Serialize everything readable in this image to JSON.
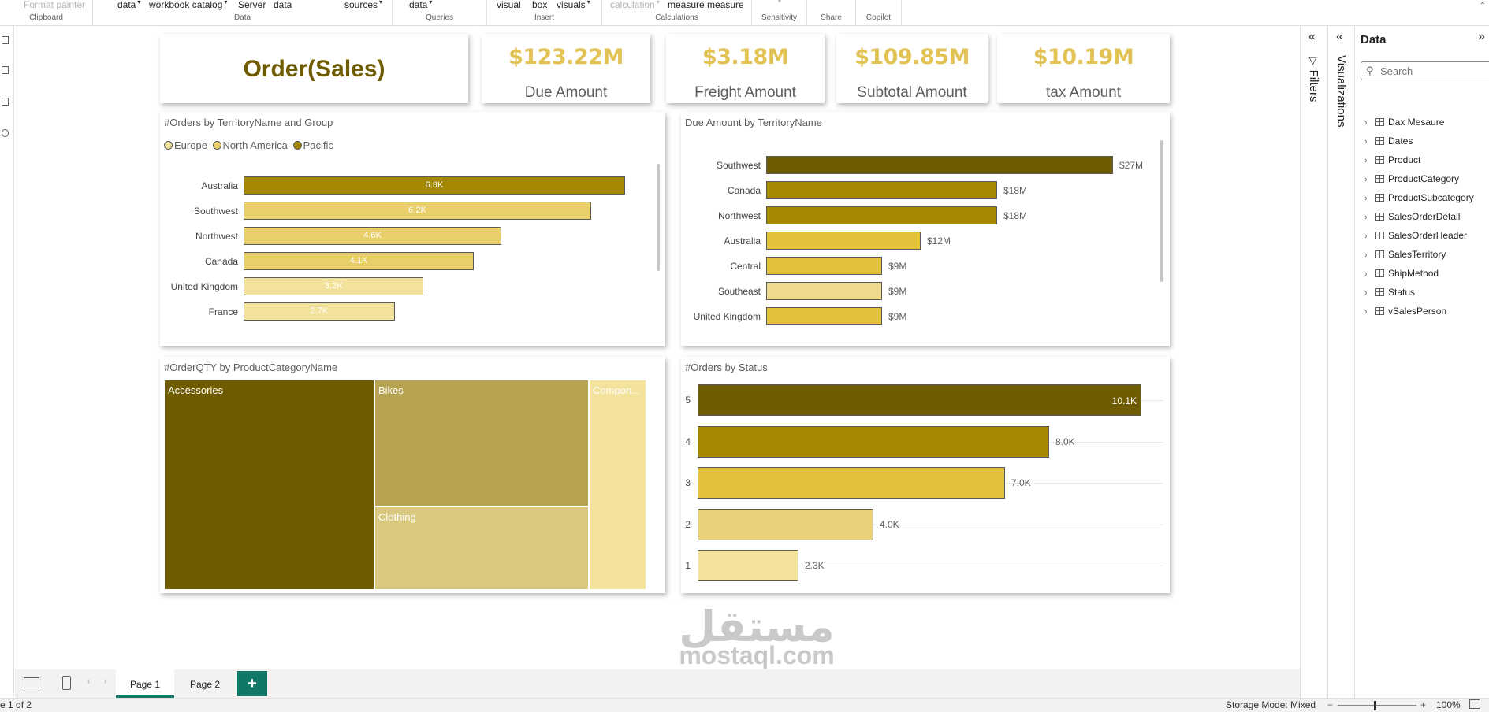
{
  "ribbon": {
    "groups": [
      {
        "name": "clipboard",
        "label": "Clipboard",
        "items": [
          "Format painter"
        ]
      },
      {
        "name": "data",
        "label": "Data",
        "items": [
          "data",
          "workbook catalog",
          "Server",
          "data",
          "sources"
        ]
      },
      {
        "name": "queries",
        "label": "Queries",
        "items": [
          "data"
        ]
      },
      {
        "name": "insert",
        "label": "Insert",
        "items": [
          "visual",
          "box",
          "visuals"
        ]
      },
      {
        "name": "calculations",
        "label": "Calculations",
        "items": [
          "calculation",
          "measure measure"
        ]
      },
      {
        "name": "sensitivity",
        "label": "Sensitivity",
        "items": []
      },
      {
        "name": "share",
        "label": "Share",
        "items": []
      },
      {
        "name": "copilot",
        "label": "Copilot",
        "items": []
      }
    ]
  },
  "report": {
    "title_card": "Order(Sales)",
    "kpis": [
      {
        "value": "$123.22M",
        "label": "Due Amount"
      },
      {
        "value": "$3.18M",
        "label": "Freight Amount"
      },
      {
        "value": "$109.85M",
        "label": "Subtotal Amount"
      },
      {
        "value": "$10.19M",
        "label": "tax Amount"
      }
    ]
  },
  "chart_data": [
    {
      "type": "bar",
      "orientation": "horizontal",
      "title": "#Orders by TerritoryName and Group",
      "legend": {
        "placement": "top-left",
        "entries": [
          {
            "name": "Europe",
            "color": "#f2e29b"
          },
          {
            "name": "North America",
            "color": "#e8cf69"
          },
          {
            "name": "Pacific",
            "color": "#a38800"
          }
        ]
      },
      "categories": [
        "Australia",
        "Southwest",
        "Northwest",
        "Canada",
        "United Kingdom",
        "France"
      ],
      "values": [
        6800,
        6200,
        4600,
        4100,
        3200,
        2700
      ],
      "data_labels": [
        "6.8K",
        "6.2K",
        "4.6K",
        "4.1K",
        "3.2K",
        "2.7K"
      ],
      "colors": [
        "#a38800",
        "#e8cf69",
        "#e8cf69",
        "#e8cf69",
        "#f2e29b",
        "#f2e29b"
      ],
      "xmax": 6800
    },
    {
      "type": "bar",
      "orientation": "horizontal",
      "title": "Due Amount by TerritoryName",
      "categories": [
        "Southwest",
        "Canada",
        "Northwest",
        "Australia",
        "Central",
        "Southeast",
        "United Kingdom"
      ],
      "values": [
        27,
        18,
        18,
        12,
        9,
        9,
        9
      ],
      "data_labels": [
        "$27M",
        "$18M",
        "$18M",
        "$12M",
        "$9M",
        "$9M",
        "$9M"
      ],
      "colors": [
        "#705c00",
        "#a38800",
        "#a38800",
        "#e3c13c",
        "#e3c13c",
        "#efd98a",
        "#e3c13c"
      ],
      "xmax": 27
    },
    {
      "type": "treemap",
      "title": "#OrderQTY by ProductCategoryName",
      "categories": [
        "Accessories",
        "Bikes",
        "Clothing",
        "Compon..."
      ],
      "colors": [
        "#705c00",
        "#b5a351",
        "#d9c97e",
        "#f2e29b"
      ]
    },
    {
      "type": "bar",
      "orientation": "horizontal",
      "title": "#Orders by Status",
      "categories": [
        "5",
        "4",
        "3",
        "2",
        "1"
      ],
      "values": [
        10100,
        8000,
        7000,
        4000,
        2300
      ],
      "data_labels": [
        "10.1K",
        "8.0K",
        "7.0K",
        "4.0K",
        "2.3K"
      ],
      "colors": [
        "#705c00",
        "#a38800",
        "#e3c13c",
        "#e8d17a",
        "#f2e29b"
      ],
      "xmax": 10100
    }
  ],
  "panes": {
    "filters_label": "Filters",
    "visualizations_label": "Visualizations",
    "data_title": "Data",
    "search_placeholder": "Search",
    "tables": [
      "Dax Mesaure",
      "Dates",
      "Product",
      "ProductCategory",
      "ProductSubcategory",
      "SalesOrderDetail",
      "SalesOrderHeader",
      "SalesTerritory",
      "ShipMethod",
      "Status",
      "vSalesPerson"
    ]
  },
  "pages": {
    "tabs": [
      "Page 1",
      "Page 2"
    ],
    "active": 0,
    "add_label": "+"
  },
  "status": {
    "page_info": "e 1 of 2",
    "storage_mode": "Storage Mode: Mixed",
    "zoom": "100%"
  },
  "watermark": {
    "latin": "mostaql.com"
  }
}
